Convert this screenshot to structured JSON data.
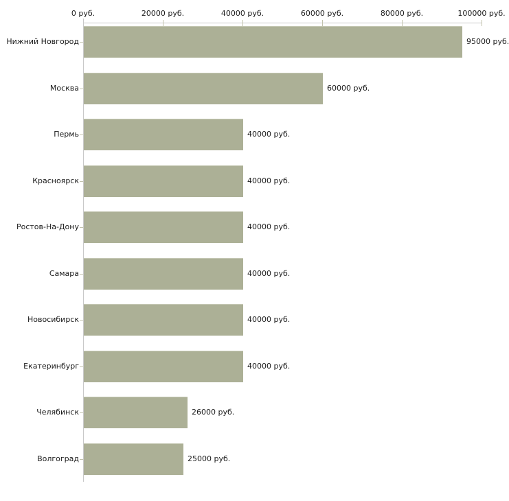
{
  "chart_data": {
    "type": "bar",
    "orientation": "horizontal",
    "title": "",
    "xlabel": "",
    "ylabel": "",
    "unit": "руб.",
    "categories": [
      "Нижний Новгород",
      "Москва",
      "Пермь",
      "Красноярск",
      "Ростов-На-Дону",
      "Самара",
      "Новосибирск",
      "Екатеринбург",
      "Челябинск",
      "Волгоград"
    ],
    "values": [
      95000,
      60000,
      40000,
      40000,
      40000,
      40000,
      40000,
      40000,
      26000,
      25000
    ],
    "value_labels": [
      "95000 руб.",
      "60000 руб.",
      "40000 руб.",
      "40000 руб.",
      "40000 руб.",
      "40000 руб.",
      "40000 руб.",
      "40000 руб.",
      "26000 руб.",
      "25000 руб."
    ],
    "x_tick_values": [
      0,
      20000,
      40000,
      60000,
      80000,
      100000
    ],
    "x_tick_labels": [
      "0 руб.",
      "20000 руб.",
      "40000 руб.",
      "60000 руб.",
      "80000 руб.",
      "100000 руб."
    ],
    "xlim": [
      0,
      100000
    ],
    "grid": false,
    "legend": "none",
    "axis_position": "top",
    "colors": {
      "bar": "#acb096",
      "bar_highlight": "#c4c7b3",
      "axis_line": "#c9c9c9",
      "tick": "#c2c2ac",
      "text": "#1a1a1a",
      "background": "#ffffff"
    }
  }
}
